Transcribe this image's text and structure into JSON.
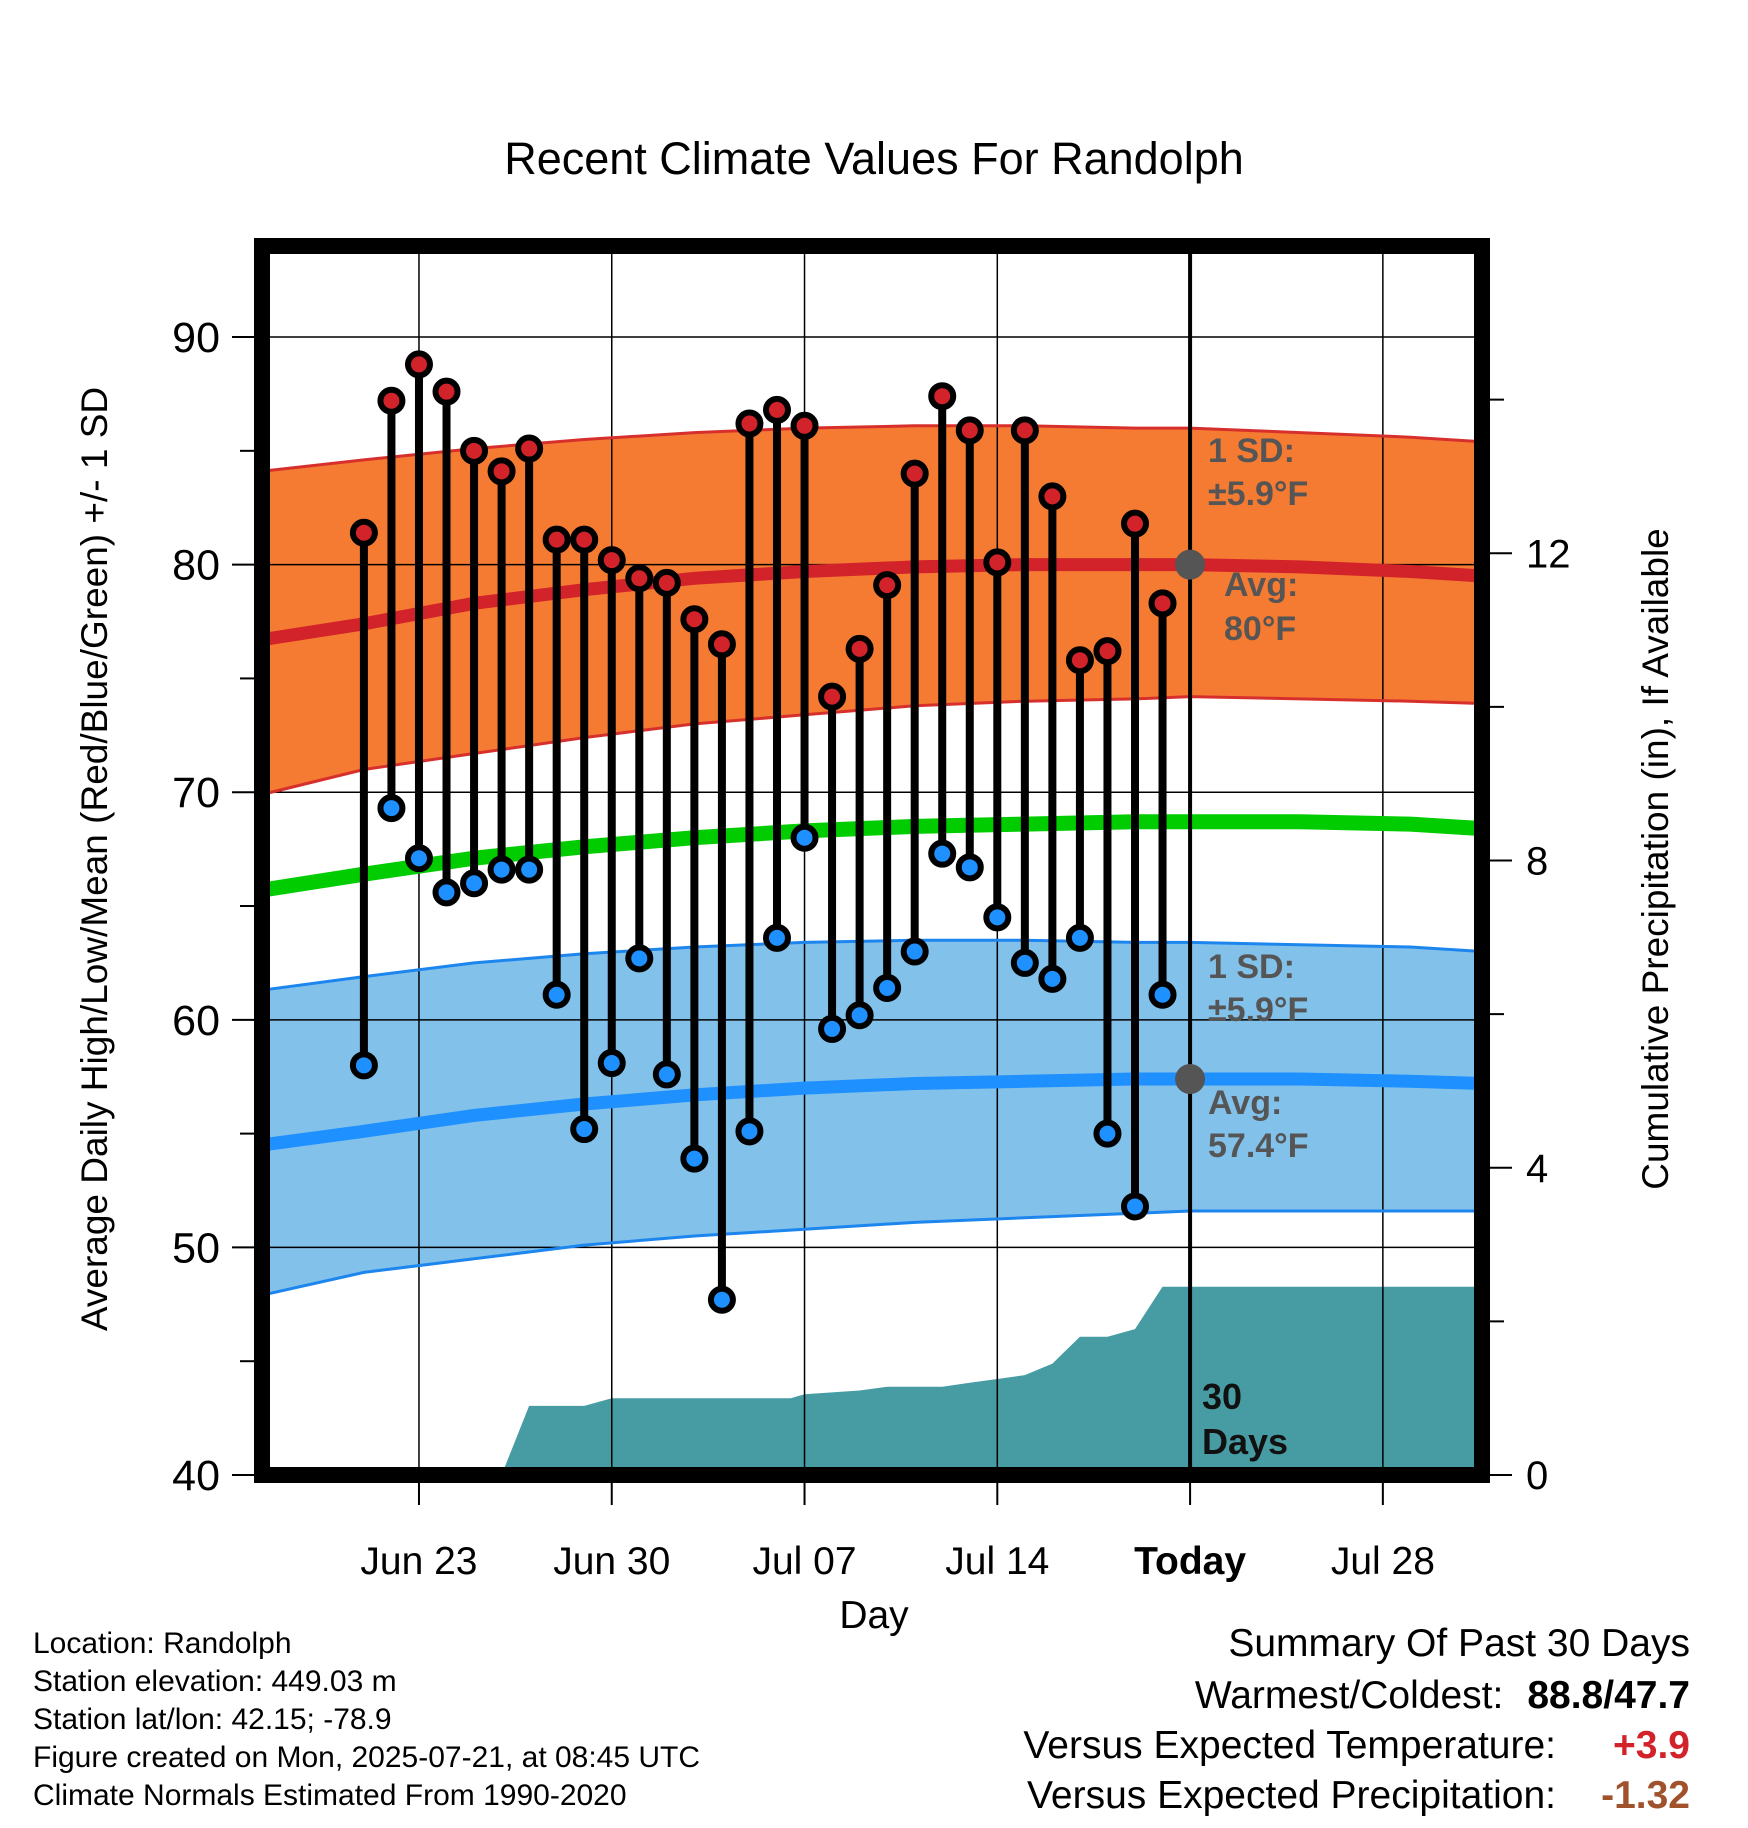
{
  "chart_data": {
    "type": "line",
    "title": "Recent Climate Values For Randolph",
    "xlabel": "Day",
    "ylabel_left": "Average Daily High/Low/Mean (Red/Blue/Green) +/- 1 SD",
    "ylabel_right": "Cumulative Precipitation (in), If Available",
    "ylim_left": [
      40,
      94
    ],
    "ylim_right": [
      0,
      16
    ],
    "yticks_left": [
      40,
      50,
      60,
      70,
      80,
      90
    ],
    "yticks_right": [
      0,
      4,
      8,
      12
    ],
    "xlim_days": [
      -33.7,
      10.6
    ],
    "x_ticks": [
      {
        "day": -28,
        "label": "Jun 23"
      },
      {
        "day": -21,
        "label": "Jun 30"
      },
      {
        "day": -14,
        "label": "Jul 07"
      },
      {
        "day": -7,
        "label": "Jul 14"
      },
      {
        "day": 0,
        "label": "Today"
      },
      {
        "day": 7,
        "label": "Jul 28"
      }
    ],
    "today_label": "Today",
    "daily": {
      "days": [
        -30,
        -29,
        -28,
        -27,
        -26,
        -25,
        -24,
        -23,
        -22,
        -21,
        -20,
        -19,
        -18,
        -17,
        -16,
        -15,
        -14,
        -13,
        -12,
        -11,
        -10,
        -9,
        -8,
        -7,
        -6,
        -5,
        -4,
        -3,
        -2,
        -1
      ],
      "high": [
        81.4,
        87.2,
        88.8,
        87.6,
        85.0,
        84.1,
        85.1,
        81.1,
        81.1,
        80.2,
        79.4,
        79.2,
        77.6,
        76.5,
        86.2,
        86.8,
        86.1,
        74.2,
        76.3,
        79.1,
        84.0,
        87.4,
        85.9,
        80.1,
        85.9,
        83.0,
        75.8,
        76.2,
        81.8,
        78.3
      ],
      "low": [
        58.0,
        69.3,
        67.1,
        65.6,
        66.0,
        66.6,
        66.6,
        61.1,
        55.2,
        58.1,
        62.7,
        57.6,
        53.9,
        47.7,
        55.1,
        63.6,
        68.0,
        59.6,
        60.2,
        61.4,
        63.0,
        67.3,
        66.7,
        64.5,
        62.5,
        61.8,
        63.6,
        55.0,
        51.8,
        61.1
      ]
    },
    "normals": {
      "days": [
        -33.7,
        -30,
        -26,
        -22,
        -18,
        -14,
        -10,
        -6,
        -2,
        0,
        4,
        8,
        10.6
      ],
      "high_mean": [
        76.7,
        77.4,
        78.3,
        78.9,
        79.4,
        79.7,
        79.9,
        80.0,
        80.0,
        80.0,
        79.9,
        79.7,
        79.5
      ],
      "high_upper": [
        84.1,
        84.6,
        85.1,
        85.5,
        85.8,
        86.0,
        86.1,
        86.1,
        86.0,
        86.0,
        85.8,
        85.6,
        85.4
      ],
      "high_lower": [
        69.9,
        71.0,
        71.7,
        72.4,
        73.0,
        73.4,
        73.8,
        74.0,
        74.1,
        74.2,
        74.1,
        74.0,
        73.9
      ],
      "mean": [
        65.7,
        66.4,
        67.1,
        67.6,
        68.0,
        68.3,
        68.5,
        68.6,
        68.7,
        68.7,
        68.7,
        68.6,
        68.4
      ],
      "low_mean": [
        54.5,
        55.1,
        55.8,
        56.3,
        56.7,
        57.0,
        57.2,
        57.3,
        57.4,
        57.4,
        57.4,
        57.3,
        57.2
      ],
      "low_upper": [
        61.3,
        61.9,
        62.5,
        62.9,
        63.2,
        63.4,
        63.5,
        63.5,
        63.4,
        63.4,
        63.3,
        63.2,
        63.0
      ],
      "low_lower": [
        47.9,
        48.9,
        49.5,
        50.1,
        50.5,
        50.8,
        51.1,
        51.3,
        51.5,
        51.6,
        51.6,
        51.6,
        51.6
      ]
    },
    "precip_cumulative": {
      "days": [
        -33.7,
        -25,
        -24,
        -22,
        -21,
        -14.5,
        -14,
        -12,
        -11,
        -9,
        -8,
        -7,
        -6,
        -5,
        -4,
        -3,
        -2,
        -1,
        10.6
      ],
      "values": [
        0,
        0,
        0.9,
        0.9,
        1.0,
        1.0,
        1.05,
        1.1,
        1.15,
        1.15,
        1.2,
        1.25,
        1.3,
        1.45,
        1.8,
        1.8,
        1.9,
        2.45,
        2.45
      ]
    },
    "annotations": {
      "high_sd_title": "1 SD:",
      "high_sd_value": "±5.9°F",
      "high_avg_title": "Avg:",
      "high_avg_value": "80°F",
      "high_avg_marker": 80,
      "low_sd_title": "1 SD:",
      "low_sd_value": "±5.9°F",
      "low_avg_title": "Avg:",
      "low_avg_value": "57.4°F",
      "low_avg_marker": 57.4,
      "window_title": "30",
      "window_subtitle": "Days"
    },
    "colors": {
      "high_band": "#f57b32",
      "high_line": "#d2232a",
      "high_edge": "#d7302c",
      "mean_line": "#00cc00",
      "low_band": "#82c1ea",
      "low_line": "#1e90ff",
      "low_edge": "#1c86ee",
      "precip": "#479ca4",
      "marker_high": "#d2232a",
      "marker_low": "#1e90ff",
      "annotation_text": "#555555"
    }
  },
  "footer": {
    "location": "Location: Randolph",
    "elevation": "Station elevation: 449.03 m",
    "latlon": "Station lat/lon: 42.15; -78.9",
    "created": "Figure created on Mon, 2025-07-21, at 08:45 UTC",
    "normals": "Climate Normals Estimated From 1990-2020"
  },
  "summary": {
    "title": "Summary Of Past 30 Days",
    "warm_cold_label": "Warmest/Coldest:",
    "warm_cold_value": "88.8/47.7",
    "temp_label": "Versus Expected Temperature:",
    "temp_value": "+3.9",
    "temp_color": "#d2232a",
    "precip_label": "Versus Expected Precipitation:",
    "precip_value": "-1.32",
    "precip_color": "#a0522d"
  }
}
